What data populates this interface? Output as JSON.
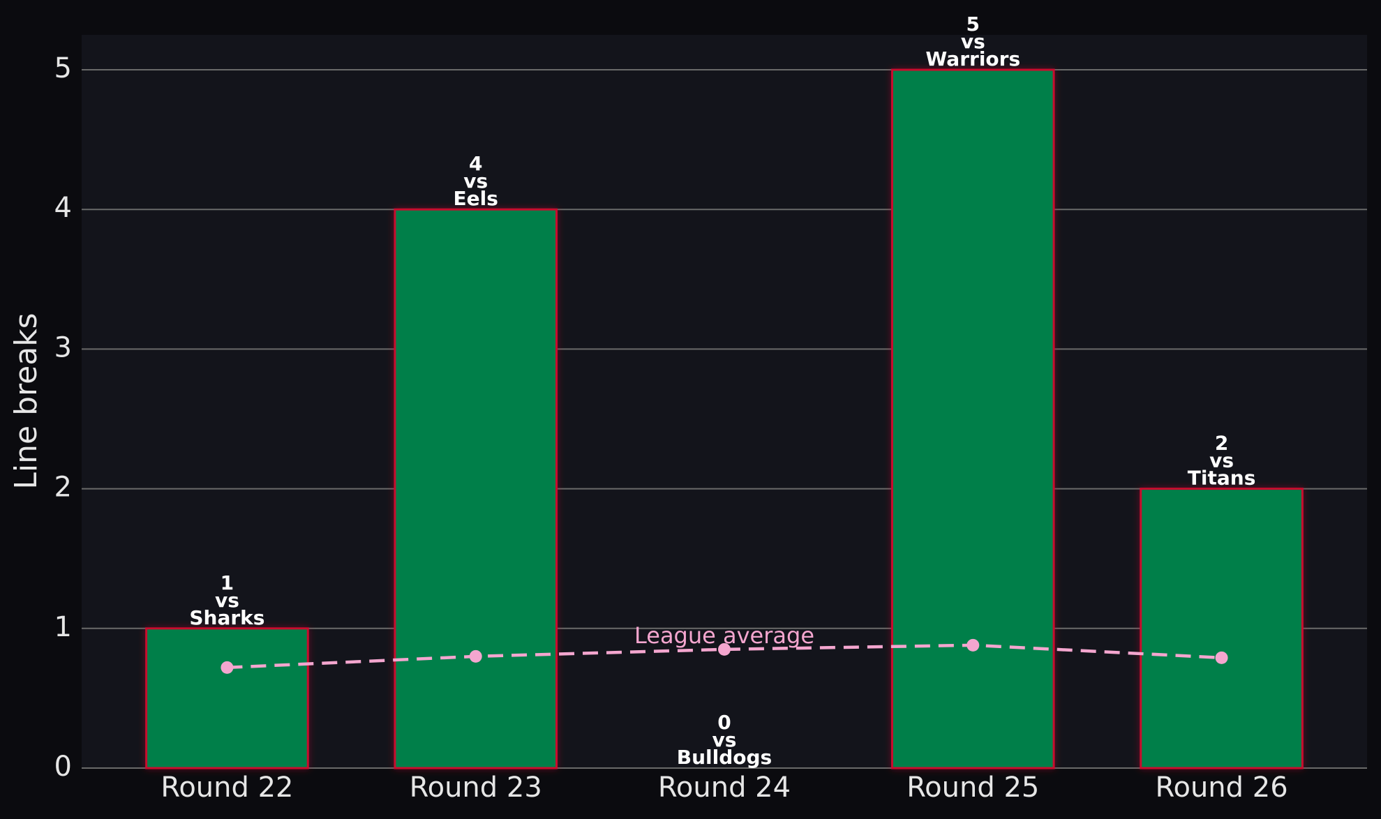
{
  "chart_data": {
    "type": "bar",
    "y_label": "Line breaks",
    "categories": [
      "Round 22",
      "Round 23",
      "Round 24",
      "Round 25",
      "Round 26"
    ],
    "values": [
      1,
      4,
      0,
      5,
      2
    ],
    "label_connector": "vs",
    "opponents": [
      "Sharks",
      "Eels",
      "Bulldogs",
      "Warriors",
      "Titans"
    ],
    "color": "#007f4a",
    "edge_color": "#c8102e",
    "ylim": [
      0,
      5.25
    ],
    "yticks": [
      0,
      1,
      2,
      3,
      4,
      5
    ],
    "grid": true,
    "series": [
      {
        "name": "League average",
        "color": "#f4a6cf",
        "values": [
          0.72,
          0.8,
          0.85,
          0.88,
          0.79
        ]
      }
    ]
  }
}
